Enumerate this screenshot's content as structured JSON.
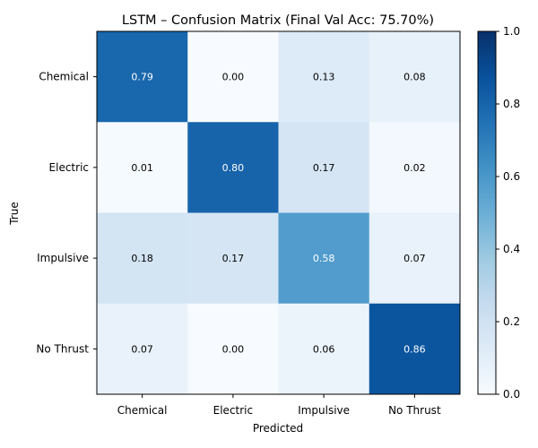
{
  "chart_data": {
    "type": "heatmap",
    "title": "LSTM – Confusion Matrix (Final Val Acc: 75.70%)",
    "xlabel": "Predicted",
    "ylabel": "True",
    "x_categories": [
      "Chemical",
      "Electric",
      "Impulsive",
      "No Thrust"
    ],
    "y_categories": [
      "Chemical",
      "Electric",
      "Impulsive",
      "No Thrust"
    ],
    "values": [
      [
        0.79,
        0.0,
        0.13,
        0.08
      ],
      [
        0.01,
        0.8,
        0.17,
        0.02
      ],
      [
        0.18,
        0.17,
        0.58,
        0.07
      ],
      [
        0.07,
        0.0,
        0.06,
        0.86
      ]
    ],
    "value_labels": [
      [
        "0.79",
        "0.00",
        "0.13",
        "0.08"
      ],
      [
        "0.01",
        "0.80",
        "0.17",
        "0.02"
      ],
      [
        "0.18",
        "0.17",
        "0.58",
        "0.07"
      ],
      [
        "0.07",
        "0.00",
        "0.06",
        "0.86"
      ]
    ],
    "colormap": "Blues",
    "vmin": 0.0,
    "vmax": 1.0,
    "colorbar_ticks": [
      "0.0",
      "0.2",
      "0.4",
      "0.6",
      "0.8",
      "1.0"
    ],
    "colorbar_tick_values": [
      0.0,
      0.2,
      0.4,
      0.6,
      0.8,
      1.0
    ],
    "grid": false
  }
}
